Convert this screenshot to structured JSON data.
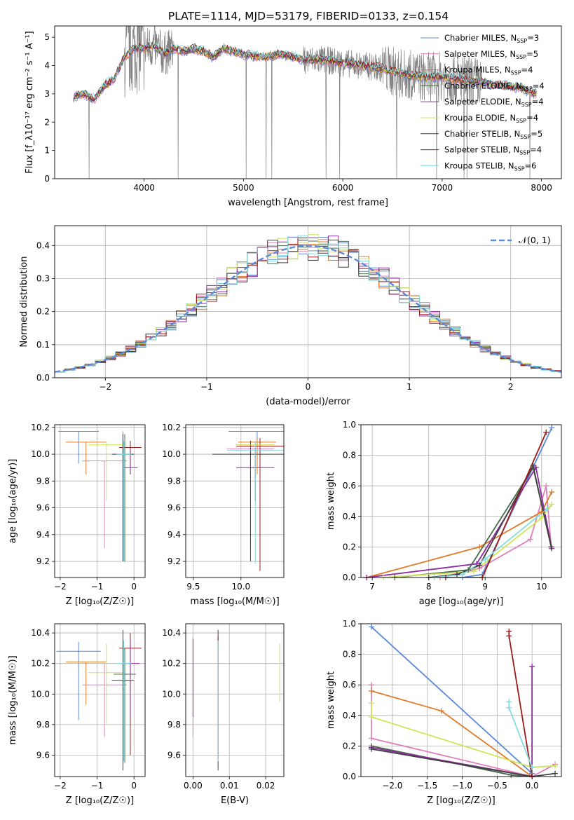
{
  "title": "PLATE=1114, MJD=53179, FIBERID=0133, z=0.154",
  "colors": {
    "chabrier_miles": "#5b8ad9",
    "salpeter_miles": "#e07fb9",
    "kroupa_miles": "#e07b28",
    "chabrier_elodie": "#4a6b4a",
    "salpeter_elodie": "#8e2aa0",
    "kroupa_elodie": "#cde555",
    "chabrier_stelib": "#404040",
    "salpeter_stelib": "#9c1a1a",
    "kroupa_stelib": "#84dbe0",
    "data": "#808080"
  },
  "chart_data": [
    {
      "type": "line",
      "id": "spectrum",
      "xlabel": "wavelength [Angstrom, rest frame]",
      "ylabel": "Flux [f_λ10⁻¹⁷ erg cm⁻² s⁻¹ A⁻¹]",
      "xlim": [
        3100,
        8200
      ],
      "ylim": [
        0,
        5.4
      ],
      "xticks": [
        "4000",
        "5000",
        "6000",
        "7000",
        "8000"
      ],
      "yticks": [
        "0",
        "1",
        "2",
        "3",
        "4",
        "5"
      ],
      "grid": false,
      "legend_position": "right",
      "data_x": [
        3300,
        3400,
        3500,
        3600,
        3700,
        3800,
        3900,
        4000,
        4100,
        4200,
        4300,
        4400,
        4500,
        4600,
        4700,
        4800,
        5000,
        5200,
        5400,
        5600,
        5800,
        6000,
        6200,
        6400,
        6600,
        6800,
        7000,
        7200,
        7400,
        7600,
        7800,
        7950
      ],
      "data_y": [
        2.9,
        3.0,
        2.8,
        3.3,
        3.5,
        4.3,
        4.6,
        4.6,
        4.7,
        4.4,
        4.6,
        4.5,
        4.6,
        4.5,
        4.3,
        4.6,
        4.4,
        4.3,
        4.4,
        4.2,
        4.2,
        4.1,
        4.0,
        3.9,
        3.7,
        3.6,
        3.6,
        3.5,
        3.4,
        3.3,
        3.2,
        3.0
      ],
      "series": [
        {
          "name": "Chabrier MILES, N_SSP=3",
          "label_main": "Chabrier MILES, N",
          "label_sub": "SSP",
          "label_tail": "=3",
          "color_key": "chabrier_miles"
        },
        {
          "name": "Salpeter MILES, N_SSP=5",
          "label_main": "Salpeter MILES, N",
          "label_sub": "SSP",
          "label_tail": "=5",
          "color_key": "salpeter_miles"
        },
        {
          "name": "Kroupa MILES, N_SSP=4",
          "label_main": "Kroupa MILES, N",
          "label_sub": "SSP",
          "label_tail": "=4",
          "color_key": "kroupa_miles"
        },
        {
          "name": "Chabrier ELODIE, N_SSP=4",
          "label_main": "Chabrier ELODIE, N",
          "label_sub": "SSP",
          "label_tail": "=4",
          "color_key": "chabrier_elodie"
        },
        {
          "name": "Salpeter ELODIE, N_SSP=4",
          "label_main": "Salpeter ELODIE, N",
          "label_sub": "SSP",
          "label_tail": "=4",
          "color_key": "salpeter_elodie"
        },
        {
          "name": "Kroupa ELODIE, N_SSP=4",
          "label_main": "Kroupa ELODIE, N",
          "label_sub": "SSP",
          "label_tail": "=4",
          "color_key": "kroupa_elodie"
        },
        {
          "name": "Chabrier STELIB, N_SSP=5",
          "label_main": "Chabrier STELIB, N",
          "label_sub": "SSP",
          "label_tail": "=5",
          "color_key": "chabrier_stelib"
        },
        {
          "name": "Salpeter STELIB, N_SSP=4",
          "label_main": "Salpeter STELIB, N",
          "label_sub": "SSP",
          "label_tail": "=4",
          "color_key": "salpeter_stelib"
        },
        {
          "name": "Kroupa STELIB, N_SSP=6",
          "label_main": "Kroupa STELIB, N",
          "label_sub": "SSP",
          "label_tail": "=6",
          "color_key": "kroupa_stelib"
        }
      ]
    },
    {
      "type": "histogram",
      "id": "residuals",
      "xlabel": "(data-model)/error",
      "ylabel": "Normed distribution",
      "xlim": [
        -2.5,
        2.5
      ],
      "ylim": [
        0,
        0.46
      ],
      "xticks": [
        "−2",
        "−1",
        "0",
        "1",
        "2"
      ],
      "yticks": [
        "0.0",
        "0.1",
        "0.2",
        "0.3",
        "0.4"
      ],
      "grid": true,
      "legend_position": "top-right",
      "gaussian_label": "𝒩(0, 1)",
      "bin_width": 0.1
    },
    {
      "type": "scatter",
      "id": "age_vs_Z",
      "xlabel": "Z [log₁₀(Z/Z☉)]",
      "ylabel": "age  [log₁₀(age/yr)]",
      "xlim": [
        -2.15,
        0.3
      ],
      "ylim": [
        9.08,
        10.22
      ],
      "xticks": [
        "−2",
        "−1",
        "0"
      ],
      "yticks": [
        "9.2",
        "9.4",
        "9.6",
        "9.8",
        "10.0",
        "10.2"
      ],
      "grid": true,
      "points": [
        {
          "x": -1.5,
          "y": 10.17,
          "xerr": 0.55,
          "ylo": 9.93,
          "yhi": 10.17,
          "color_key": "chabrier_miles"
        },
        {
          "x": -0.3,
          "y": 10.17,
          "xerr": 0.0,
          "ylo": 9.2,
          "yhi": 10.17,
          "color_key": "chabrier_miles"
        },
        {
          "x": -1.3,
          "y": 10.09,
          "xerr": 0.55,
          "ylo": 9.85,
          "yhi": 10.09,
          "color_key": "kroupa_miles"
        },
        {
          "x": -0.8,
          "y": 9.95,
          "xerr": 0.6,
          "ylo": 9.3,
          "yhi": 9.95,
          "color_key": "salpeter_miles"
        },
        {
          "x": -0.75,
          "y": 10.07,
          "xerr": 0.5,
          "ylo": 9.65,
          "yhi": 10.08,
          "color_key": "kroupa_elodie"
        },
        {
          "x": -0.3,
          "y": 10.0,
          "xerr": 0.3,
          "ylo": 9.2,
          "yhi": 10.15,
          "color_key": "chabrier_stelib"
        },
        {
          "x": -0.1,
          "y": 10.05,
          "xerr": 0.3,
          "ylo": 9.85,
          "yhi": 10.1,
          "color_key": "salpeter_stelib"
        },
        {
          "x": -0.1,
          "y": 9.9,
          "xerr": 0.2,
          "ylo": 9.85,
          "yhi": 10.05,
          "color_key": "salpeter_elodie"
        },
        {
          "x": -0.25,
          "y": 10.0,
          "xerr": 0.25,
          "ylo": 9.2,
          "yhi": 10.15,
          "color_key": "chabrier_elodie"
        },
        {
          "x": -0.28,
          "y": 10.0,
          "xerr": 0.2,
          "ylo": 9.2,
          "yhi": 10.1,
          "color_key": "kroupa_stelib"
        }
      ]
    },
    {
      "type": "scatter",
      "id": "age_vs_mass",
      "xlabel": "mass [log₁₀(M/M☉)]",
      "ylabel": "",
      "xlim": [
        9.42,
        10.45
      ],
      "ylim": [
        9.08,
        10.22
      ],
      "xticks": [
        "9.5",
        "10.0"
      ],
      "yticks": [
        "9.2",
        "9.4",
        "9.6",
        "9.8",
        "10.0",
        "10.2"
      ],
      "grid": true,
      "points": [
        {
          "x": 10.17,
          "y": 10.17,
          "xerr": 0.3,
          "ylo": 9.93,
          "yhi": 10.17,
          "color_key": "chabrier_miles"
        },
        {
          "x": 10.17,
          "y": 10.09,
          "xerr": 0.2,
          "ylo": 9.85,
          "yhi": 10.12,
          "color_key": "kroupa_miles"
        },
        {
          "x": 10.1,
          "y": 10.04,
          "xerr": 0.25,
          "ylo": 9.3,
          "yhi": 10.04,
          "color_key": "salpeter_miles"
        },
        {
          "x": 10.2,
          "y": 10.06,
          "xerr": 0.25,
          "ylo": 9.13,
          "yhi": 10.12,
          "color_key": "salpeter_stelib"
        },
        {
          "x": 10.1,
          "y": 10.0,
          "xerr": 0.4,
          "ylo": 9.2,
          "yhi": 10.1,
          "color_key": "chabrier_stelib"
        },
        {
          "x": 10.15,
          "y": 10.07,
          "xerr": 0.2,
          "ylo": 9.65,
          "yhi": 10.1,
          "color_key": "kroupa_elodie"
        },
        {
          "x": 10.15,
          "y": 9.9,
          "xerr": 0.2,
          "ylo": 9.65,
          "yhi": 10.05,
          "color_key": "salpeter_elodie"
        },
        {
          "x": 10.15,
          "y": 10.03,
          "xerr": 0.3,
          "ylo": 9.18,
          "yhi": 10.1,
          "color_key": "kroupa_stelib"
        }
      ]
    },
    {
      "type": "line",
      "id": "weight_vs_age",
      "xlabel": "age  [log₁₀(age/yr)]",
      "ylabel": "mass weight",
      "xlim": [
        6.8,
        10.35
      ],
      "ylim": [
        0,
        1.0
      ],
      "xticks": [
        "7",
        "8",
        "9",
        "10"
      ],
      "yticks": [
        "0.0",
        "0.2",
        "0.4",
        "0.6",
        "0.8",
        "1.0"
      ],
      "grid": true,
      "series": [
        {
          "color_key": "chabrier_miles",
          "x": [
            8.6,
            8.95,
            10.18
          ],
          "y": [
            0.0,
            0.02,
            0.98
          ]
        },
        {
          "color_key": "salpeter_miles",
          "x": [
            8.2,
            8.9,
            9.8,
            10.08,
            10.17
          ],
          "y": [
            0.0,
            0.06,
            0.25,
            0.6,
            0.2
          ]
        },
        {
          "color_key": "kroupa_miles",
          "x": [
            6.9,
            8.9,
            10.0,
            10.18
          ],
          "y": [
            0.0,
            0.2,
            0.43,
            0.56
          ]
        },
        {
          "color_key": "chabrier_elodie",
          "x": [
            7.4,
            8.7,
            9.85,
            10.17
          ],
          "y": [
            0.0,
            0.05,
            0.72,
            0.2
          ]
        },
        {
          "color_key": "salpeter_elodie",
          "x": [
            6.9,
            8.85,
            9.9,
            10.18
          ],
          "y": [
            0.0,
            0.09,
            0.72,
            0.19
          ]
        },
        {
          "color_key": "kroupa_elodie",
          "x": [
            7.2,
            8.8,
            10.0,
            10.18
          ],
          "y": [
            0.0,
            0.04,
            0.39,
            0.48
          ]
        },
        {
          "color_key": "chabrier_stelib",
          "x": [
            8.0,
            8.5,
            8.9,
            9.85,
            10.17
          ],
          "y": [
            0.0,
            0.02,
            0.08,
            0.73,
            0.2
          ]
        },
        {
          "color_key": "salpeter_stelib",
          "x": [
            8.3,
            8.95,
            10.08
          ],
          "y": [
            0.0,
            0.0,
            0.95
          ]
        },
        {
          "color_key": "kroupa_stelib",
          "x": [
            8.1,
            8.6,
            9.0,
            10.1
          ],
          "y": [
            0.0,
            0.02,
            0.12,
            0.45
          ]
        }
      ]
    },
    {
      "type": "scatter",
      "id": "mass_vs_Z",
      "xlabel": "Z [log₁₀(Z/Z☉)]",
      "ylabel": "mass [log₁₀(M/M☉)]",
      "xlim": [
        -2.15,
        0.3
      ],
      "ylim": [
        9.46,
        10.46
      ],
      "xticks": [
        "−2",
        "−1",
        "0"
      ],
      "yticks": [
        "9.6",
        "9.8",
        "10.0",
        "10.2",
        "10.4"
      ],
      "grid": true,
      "points": [
        {
          "x": -1.5,
          "y": 10.28,
          "xerr": 0.6,
          "ylo": 9.83,
          "yhi": 10.34,
          "color_key": "chabrier_miles"
        },
        {
          "x": -1.3,
          "y": 10.21,
          "xerr": 0.55,
          "ylo": 9.93,
          "yhi": 10.21,
          "color_key": "kroupa_miles"
        },
        {
          "x": -0.8,
          "y": 10.06,
          "xerr": 0.6,
          "ylo": 9.72,
          "yhi": 10.2,
          "color_key": "salpeter_miles"
        },
        {
          "x": -0.75,
          "y": 10.14,
          "xerr": 0.5,
          "ylo": 9.8,
          "yhi": 10.33,
          "color_key": "kroupa_elodie"
        },
        {
          "x": -0.3,
          "y": 10.09,
          "xerr": 0.3,
          "ylo": 9.5,
          "yhi": 10.42,
          "color_key": "chabrier_stelib"
        },
        {
          "x": -0.1,
          "y": 10.3,
          "xerr": 0.3,
          "ylo": 9.6,
          "yhi": 10.4,
          "color_key": "salpeter_stelib"
        },
        {
          "x": -0.1,
          "y": 10.2,
          "xerr": 0.25,
          "ylo": 9.85,
          "yhi": 10.35,
          "color_key": "salpeter_elodie"
        },
        {
          "x": -0.25,
          "y": 10.13,
          "xerr": 0.3,
          "ylo": 9.55,
          "yhi": 10.3,
          "color_key": "chabrier_elodie"
        },
        {
          "x": -0.28,
          "y": 10.2,
          "xerr": 0.2,
          "ylo": 9.56,
          "yhi": 10.35,
          "color_key": "kroupa_stelib"
        }
      ]
    },
    {
      "type": "scatter",
      "id": "mass_vs_ebv",
      "xlabel": "E(B-V)",
      "ylabel": "",
      "xlim": [
        -0.002,
        0.025
      ],
      "ylim": [
        9.46,
        10.46
      ],
      "xticks": [
        "0.00",
        "0.01",
        "0.02"
      ],
      "yticks": [
        "9.6",
        "9.8",
        "10.0",
        "10.2",
        "10.4"
      ],
      "grid": true,
      "points": [
        {
          "x": 0.0,
          "ylo": 9.72,
          "yhi": 10.37,
          "color_key": "salpeter_miles"
        },
        {
          "x": 0.0,
          "ylo": 9.85,
          "yhi": 10.36,
          "color_key": "salpeter_elodie"
        },
        {
          "x": 0.0069,
          "ylo": 9.5,
          "yhi": 10.42,
          "color_key": "chabrier_stelib"
        },
        {
          "x": 0.0069,
          "ylo": 9.58,
          "yhi": 10.38,
          "color_key": "salpeter_stelib"
        },
        {
          "x": 0.0069,
          "ylo": 9.56,
          "yhi": 10.35,
          "color_key": "kroupa_stelib"
        },
        {
          "x": 0.0239,
          "ylo": 9.95,
          "yhi": 10.33,
          "color_key": "kroupa_elodie"
        }
      ]
    },
    {
      "type": "line",
      "id": "weight_vs_Z",
      "xlabel": "Z [log₁₀(Z/Z☉)]",
      "ylabel": "mass weight",
      "xlim": [
        -2.45,
        0.42
      ],
      "ylim": [
        0,
        1.0
      ],
      "xticks": [
        "−2.0",
        "−1.5",
        "−1.0",
        "−0.5",
        "0.0"
      ],
      "yticks": [
        "0.0",
        "0.2",
        "0.4",
        "0.6",
        "0.8",
        "1.0"
      ],
      "grid": true,
      "series": [
        {
          "color_key": "chabrier_miles",
          "x": [
            -2.3,
            0.0
          ],
          "y": [
            0.98,
            0.02
          ]
        },
        {
          "color_key": "salpeter_miles",
          "x": [
            -2.3,
            -2.3,
            0.0,
            0.33
          ],
          "y": [
            0.6,
            0.25,
            0.0,
            0.08
          ]
        },
        {
          "color_key": "kroupa_miles",
          "x": [
            -2.3,
            -1.3,
            0.0
          ],
          "y": [
            0.56,
            0.43,
            0.0
          ]
        },
        {
          "color_key": "kroupa_elodie",
          "x": [
            -2.3,
            -2.3,
            0.0,
            0.33
          ],
          "y": [
            0.48,
            0.39,
            0.06,
            0.07
          ]
        },
        {
          "color_key": "chabrier_elodie",
          "x": [
            -2.3,
            -0.3,
            0.0
          ],
          "y": [
            0.2,
            0.01,
            0.0
          ]
        },
        {
          "color_key": "salpeter_elodie",
          "x": [
            -2.3,
            0.0,
            0.0
          ],
          "y": [
            0.19,
            0.0,
            0.72
          ]
        },
        {
          "color_key": "chabrier_stelib",
          "x": [
            -2.3,
            0.0,
            0.33
          ],
          "y": [
            0.18,
            0.0,
            0.02
          ]
        },
        {
          "color_key": "salpeter_stelib",
          "x": [
            -0.33,
            -0.33,
            0.0
          ],
          "y": [
            0.95,
            0.92,
            0.0
          ]
        },
        {
          "color_key": "kroupa_stelib",
          "x": [
            -0.33,
            -0.33,
            0.0
          ],
          "y": [
            0.49,
            0.45,
            0.06
          ]
        }
      ]
    }
  ]
}
